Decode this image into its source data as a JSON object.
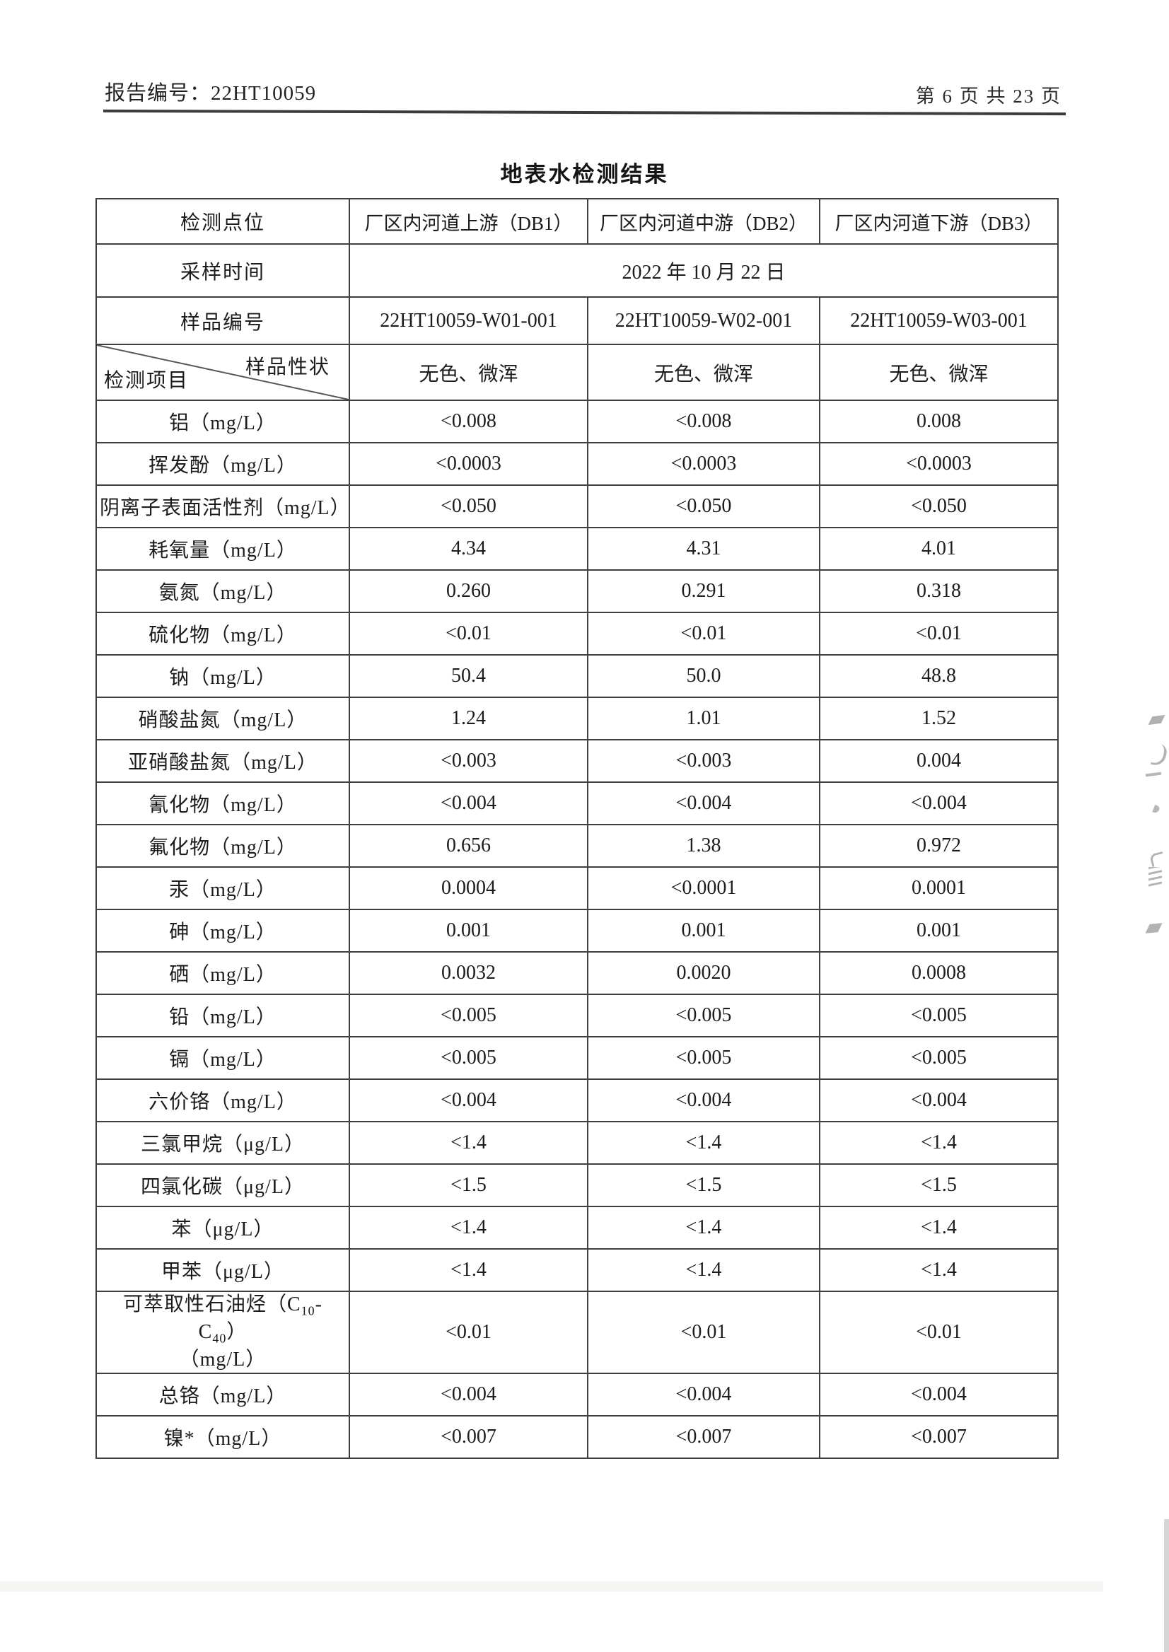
{
  "page": {
    "report_no": "报告编号：22HT10059",
    "page_indicator": "第 6 页 共 23 页",
    "title": "地表水检测结果"
  },
  "table": {
    "header": {
      "point_label": "检测点位",
      "points": [
        "厂区内河道上游（DB1）",
        "厂区内河道中游（DB2）",
        "厂区内河道下游（DB3）"
      ],
      "time_label": "采样时间",
      "time_value": "2022 年 10 月 22 日",
      "sample_label": "样品编号",
      "sample_nos": [
        "22HT10059-W01-001",
        "22HT10059-W02-001",
        "22HT10059-W03-001"
      ],
      "character_label": "样品性状",
      "item_label": "检测项目",
      "characters": [
        "无色、微浑",
        "无色、微浑",
        "无色、微浑"
      ]
    },
    "rows": [
      {
        "param": "铝（mg/L）",
        "values": [
          "<0.008",
          "<0.008",
          "0.008"
        ]
      },
      {
        "param": "挥发酚（mg/L）",
        "values": [
          "<0.0003",
          "<0.0003",
          "<0.0003"
        ]
      },
      {
        "param": "阴离子表面活性剂（mg/L）",
        "values": [
          "<0.050",
          "<0.050",
          "<0.050"
        ]
      },
      {
        "param": "耗氧量（mg/L）",
        "values": [
          "4.34",
          "4.31",
          "4.01"
        ]
      },
      {
        "param": "氨氮（mg/L）",
        "values": [
          "0.260",
          "0.291",
          "0.318"
        ]
      },
      {
        "param": "硫化物（mg/L）",
        "values": [
          "<0.01",
          "<0.01",
          "<0.01"
        ]
      },
      {
        "param": "钠（mg/L）",
        "values": [
          "50.4",
          "50.0",
          "48.8"
        ]
      },
      {
        "param": "硝酸盐氮（mg/L）",
        "values": [
          "1.24",
          "1.01",
          "1.52"
        ]
      },
      {
        "param": "亚硝酸盐氮（mg/L）",
        "values": [
          "<0.003",
          "<0.003",
          "0.004"
        ]
      },
      {
        "param": "氰化物（mg/L）",
        "values": [
          "<0.004",
          "<0.004",
          "<0.004"
        ]
      },
      {
        "param": "氟化物（mg/L）",
        "values": [
          "0.656",
          "1.38",
          "0.972"
        ]
      },
      {
        "param": "汞（mg/L）",
        "values": [
          "0.0004",
          "<0.0001",
          "0.0001"
        ]
      },
      {
        "param": "砷（mg/L）",
        "values": [
          "0.001",
          "0.001",
          "0.001"
        ]
      },
      {
        "param": "硒（mg/L）",
        "values": [
          "0.0032",
          "0.0020",
          "0.0008"
        ]
      },
      {
        "param": "铅（mg/L）",
        "values": [
          "<0.005",
          "<0.005",
          "<0.005"
        ]
      },
      {
        "param": "镉（mg/L）",
        "values": [
          "<0.005",
          "<0.005",
          "<0.005"
        ]
      },
      {
        "param": "六价铬（mg/L）",
        "values": [
          "<0.004",
          "<0.004",
          "<0.004"
        ]
      },
      {
        "param": "三氯甲烷（μg/L）",
        "values": [
          "<1.4",
          "<1.4",
          "<1.4"
        ]
      },
      {
        "param": "四氯化碳（μg/L）",
        "values": [
          "<1.5",
          "<1.5",
          "<1.5"
        ]
      },
      {
        "param": "苯（μg/L）",
        "values": [
          "<1.4",
          "<1.4",
          "<1.4"
        ]
      },
      {
        "param": "甲苯（μg/L）",
        "values": [
          "<1.4",
          "<1.4",
          "<1.4"
        ]
      },
      {
        "param": [
          "可萃取性石油烃（C",
          {
            "sub": "10"
          },
          "-C",
          {
            "sub": "40"
          },
          "）",
          {
            "br": true
          },
          "（mg/L）"
        ],
        "tall": true,
        "values": [
          "<0.01",
          "<0.01",
          "<0.01"
        ]
      },
      {
        "param": "总铬（mg/L）",
        "values": [
          "<0.004",
          "<0.004",
          "<0.004"
        ]
      },
      {
        "param": "镍*（mg/L）",
        "values": [
          "<0.007",
          "<0.007",
          "<0.007"
        ]
      }
    ]
  }
}
